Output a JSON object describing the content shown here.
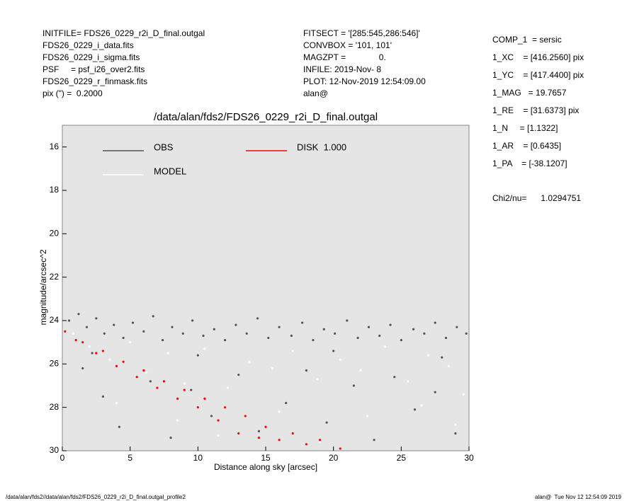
{
  "header": {
    "left": [
      "INITFILE= FDS26_0229_r2i_D_final.outgal",
      "FDS26_0229_i_data.fits",
      "FDS26_0229_i_sigma.fits",
      "PSF     = psf_i26_over2.fits",
      "FDS26_0229_r_finmask.fits",
      "pix (\") =  0.2000"
    ],
    "middle": [
      "FITSECT = '[285:545,286:546]'",
      "CONVBOX = '101, 101'",
      "MAGZPT =              0.",
      "INFILE: 2019-Nov- 8",
      "PLOT: 12-Nov-2019 12:54:09.00",
      "alan@"
    ],
    "right": [
      "COMP_1  = sersic",
      "1_XC    = [416.2560] pix",
      "1_YC    = [417.4400] pix",
      "1_MAG   = 19.7657",
      "1_RE    = [31.6373] pix",
      "1_N     = [1.1322]",
      "1_AR    = [0.6435]",
      "1_PA    = [-38.1207]"
    ],
    "chi2": "Chi2/nu=      1.0294751"
  },
  "footer": {
    "left": "/data/alan/fds2//data/alan/fds2/FDS26_0229_r2i_D_final.outgal_profile2",
    "right": "alan@  Tue Nov 12 12:54:09 2019"
  },
  "chart_data": {
    "type": "scatter",
    "title": "/data/alan/fds2/FDS26_0229_r2i_D_final.outgal",
    "x_label": "Distance along sky [arcsec]",
    "y_label": "magnitude/arcsec^2",
    "xlim": [
      0,
      30
    ],
    "xticks": [
      0,
      5,
      10,
      15,
      20,
      25,
      30
    ],
    "ylim": [
      15,
      30
    ],
    "y_inverted": true,
    "yticks": [
      16,
      18,
      20,
      22,
      24,
      26,
      28,
      30
    ],
    "background": "#e5e5e5",
    "series": [
      {
        "name": "OBS",
        "color": "#555555",
        "x": [
          0.5,
          1.2,
          1.8,
          2.5,
          3.1,
          3.8,
          4.5,
          5.2,
          6.0,
          6.7,
          7.4,
          8.1,
          8.9,
          9.6,
          10.4,
          11.2,
          12.0,
          12.8,
          13.6,
          14.4,
          15.2,
          16.0,
          16.9,
          17.7,
          18.5,
          19.3,
          20.1,
          21.0,
          21.8,
          22.6,
          23.4,
          24.2,
          25.0,
          25.9,
          26.7,
          27.5,
          28.3,
          29.1,
          29.8,
          1.5,
          3.0,
          4.2,
          6.5,
          8.0,
          9.5,
          11.0,
          13.0,
          14.5,
          16.5,
          18.0,
          19.5,
          21.5,
          23.0,
          24.5,
          26.0,
          27.5,
          29.0,
          2.2,
          10.0,
          20.0,
          28.0
        ],
        "values": [
          24.0,
          23.7,
          24.3,
          23.9,
          24.6,
          24.2,
          24.8,
          24.1,
          24.5,
          23.8,
          24.9,
          24.3,
          24.6,
          24.0,
          24.7,
          24.4,
          24.9,
          24.2,
          24.6,
          23.9,
          24.8,
          24.3,
          24.7,
          24.1,
          24.9,
          24.4,
          24.6,
          24.0,
          24.8,
          24.3,
          24.7,
          24.2,
          24.9,
          24.4,
          24.6,
          24.1,
          24.8,
          24.3,
          24.6,
          26.2,
          27.5,
          28.9,
          26.8,
          29.4,
          27.2,
          28.4,
          26.5,
          29.1,
          27.8,
          26.3,
          28.7,
          27.0,
          29.5,
          26.6,
          28.1,
          27.3,
          29.2,
          25.5,
          25.6,
          25.4,
          25.7
        ]
      },
      {
        "name": "MODEL",
        "color": "#ffffff",
        "x": [
          0.8,
          2.0,
          3.5,
          5.0,
          6.2,
          7.8,
          9.0,
          10.5,
          12.2,
          13.8,
          15.5,
          17.0,
          18.8,
          20.5,
          22.0,
          23.8,
          25.5,
          27.0,
          28.5,
          29.6,
          4.0,
          8.5,
          11.5,
          16.0,
          19.0,
          22.5,
          26.5,
          29.0
        ],
        "values": [
          24.6,
          25.2,
          25.8,
          25.0,
          26.4,
          25.5,
          26.9,
          25.3,
          27.1,
          25.9,
          26.2,
          25.4,
          26.7,
          25.8,
          26.3,
          25.2,
          26.8,
          25.6,
          26.1,
          27.4,
          27.8,
          28.6,
          29.3,
          28.2,
          29.6,
          28.4,
          27.9,
          28.8
        ]
      },
      {
        "name": "DISK  1.000",
        "color": "#ff0000",
        "x": [
          0.2,
          1.0,
          1.5,
          2.5,
          3.0,
          4.0,
          4.5,
          5.5,
          6.0,
          7.0,
          7.5,
          8.5,
          9.0,
          10.0,
          10.5,
          11.5,
          12.0,
          13.0,
          13.5,
          14.5,
          15.0,
          16.0,
          17.0,
          18.0,
          19.0,
          20.5
        ],
        "values": [
          24.5,
          24.9,
          25.0,
          25.5,
          25.4,
          26.1,
          25.9,
          26.6,
          26.3,
          27.1,
          26.8,
          27.6,
          27.2,
          28.0,
          27.6,
          28.6,
          28.0,
          29.2,
          28.4,
          29.4,
          28.9,
          29.5,
          29.2,
          29.7,
          29.5,
          29.9
        ]
      }
    ]
  }
}
